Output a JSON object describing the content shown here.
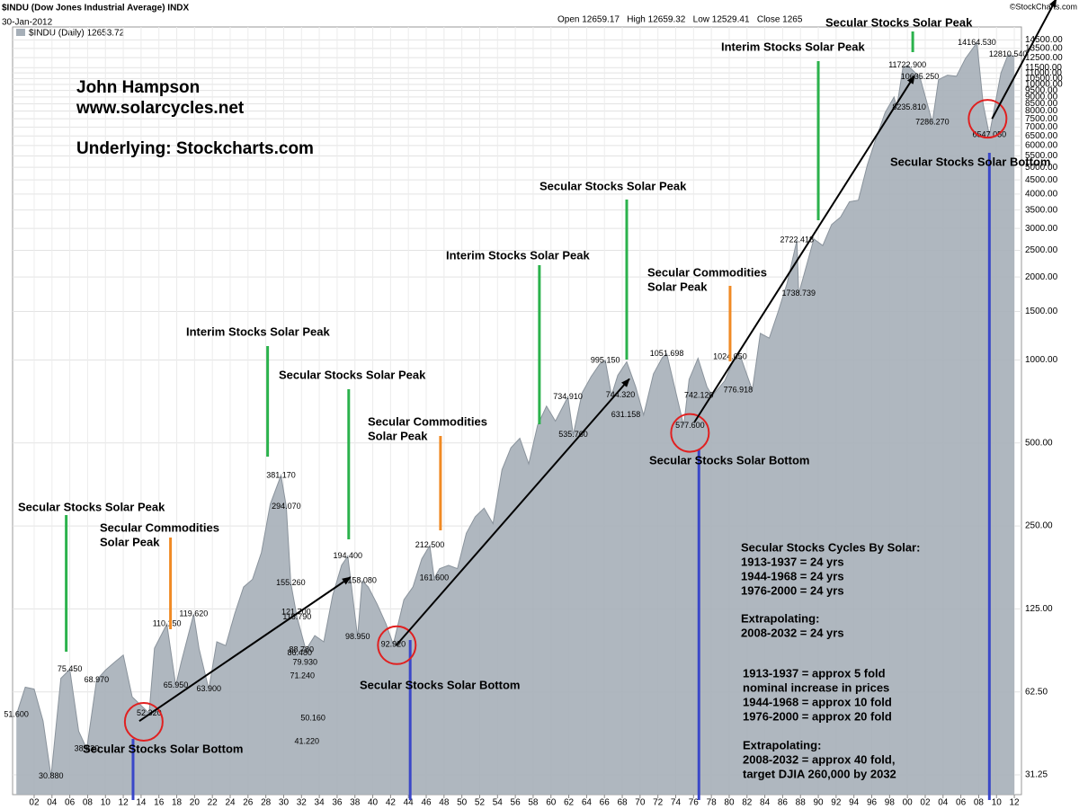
{
  "chart_data": {
    "type": "area",
    "title": "$INDU (Dow Jones Industrial Average) INDX",
    "date": "30-Jan-2012",
    "header_prices": "Open 12659.17   High 12659.32   Low 12529.41   Close 1265",
    "watermark": "©StockCharts.com",
    "author": [
      "John Hampson",
      "www.solarcycles.net"
    ],
    "source": "Underlying: Stockcharts.com",
    "log_y": true,
    "grid": true,
    "xlim": [
      1899.58,
      2012.8
    ],
    "ylim": [
      26.5,
      16150
    ],
    "xticks": [
      {
        "value": 1902,
        "label": "02"
      },
      {
        "value": 1904,
        "label": "04"
      },
      {
        "value": 1906,
        "label": "06"
      },
      {
        "value": 1908,
        "label": "08"
      },
      {
        "value": 1910,
        "label": "10"
      },
      {
        "value": 1912,
        "label": "12"
      },
      {
        "value": 1914,
        "label": "14"
      },
      {
        "value": 1916,
        "label": "16"
      },
      {
        "value": 1918,
        "label": "18"
      },
      {
        "value": 1920,
        "label": "20"
      },
      {
        "value": 1922,
        "label": "22"
      },
      {
        "value": 1924,
        "label": "24"
      },
      {
        "value": 1926,
        "label": "26"
      },
      {
        "value": 1928,
        "label": "28"
      },
      {
        "value": 1930,
        "label": "30"
      },
      {
        "value": 1932,
        "label": "32"
      },
      {
        "value": 1934,
        "label": "34"
      },
      {
        "value": 1936,
        "label": "36"
      },
      {
        "value": 1938,
        "label": "38"
      },
      {
        "value": 1940,
        "label": "40"
      },
      {
        "value": 1942,
        "label": "42"
      },
      {
        "value": 1944,
        "label": "44"
      },
      {
        "value": 1946,
        "label": "46"
      },
      {
        "value": 1948,
        "label": "48"
      },
      {
        "value": 1950,
        "label": "50"
      },
      {
        "value": 1952,
        "label": "52"
      },
      {
        "value": 1954,
        "label": "54"
      },
      {
        "value": 1956,
        "label": "56"
      },
      {
        "value": 1958,
        "label": "58"
      },
      {
        "value": 1960,
        "label": "60"
      },
      {
        "value": 1962,
        "label": "62"
      },
      {
        "value": 1964,
        "label": "64"
      },
      {
        "value": 1966,
        "label": "66"
      },
      {
        "value": 1968,
        "label": "68"
      },
      {
        "value": 1970,
        "label": "70"
      },
      {
        "value": 1972,
        "label": "72"
      },
      {
        "value": 1974,
        "label": "74"
      },
      {
        "value": 1976,
        "label": "76"
      },
      {
        "value": 1978,
        "label": "78"
      },
      {
        "value": 1980,
        "label": "80"
      },
      {
        "value": 1982,
        "label": "82"
      },
      {
        "value": 1984,
        "label": "84"
      },
      {
        "value": 1986,
        "label": "86"
      },
      {
        "value": 1988,
        "label": "88"
      },
      {
        "value": 1990,
        "label": "90"
      },
      {
        "value": 1992,
        "label": "92"
      },
      {
        "value": 1994,
        "label": "94"
      },
      {
        "value": 1996,
        "label": "96"
      },
      {
        "value": 1998,
        "label": "98"
      },
      {
        "value": 2000,
        "label": "00"
      },
      {
        "value": 2002,
        "label": "02"
      },
      {
        "value": 2004,
        "label": "04"
      },
      {
        "value": 2006,
        "label": "06"
      },
      {
        "value": 2008,
        "label": "08"
      },
      {
        "value": 2010,
        "label": "10"
      },
      {
        "value": 2012,
        "label": "12"
      }
    ],
    "yticks": [
      31.25,
      {
        "value": 62.5,
        "label": "62.50"
      },
      {
        "value": 125,
        "label": "125.00"
      },
      {
        "value": 250,
        "label": "250.00"
      },
      {
        "value": 500,
        "label": "500.00"
      },
      {
        "value": 1000,
        "label": "1000.00"
      },
      {
        "value": 1500,
        "label": "1500.00"
      },
      {
        "value": 2000,
        "label": "2000.00"
      },
      {
        "value": 2500,
        "label": "2500.00"
      },
      {
        "value": 3000,
        "label": "3000.00"
      },
      {
        "value": 3500,
        "label": "3500.00"
      },
      {
        "value": 4000,
        "label": "4000.00"
      },
      {
        "value": 4500,
        "label": "4500.00"
      },
      {
        "value": 5000,
        "label": "5000.00"
      },
      {
        "value": 5500,
        "label": "5500.00"
      },
      {
        "value": 6000,
        "label": "6000.00"
      },
      {
        "value": 6500,
        "label": "6500.00"
      },
      {
        "value": 7000,
        "label": "7000.00"
      },
      {
        "value": 7500,
        "label": "7500.00"
      },
      {
        "value": 8000,
        "label": "8000.00"
      },
      {
        "value": 8500,
        "label": "8500.00"
      },
      {
        "value": 9000,
        "label": "9000.00"
      },
      {
        "value": 9500,
        "label": "9500.00"
      },
      {
        "value": 10000,
        "label": "10000.00"
      },
      {
        "value": 10500,
        "label": "10500.00"
      },
      {
        "value": 11000,
        "label": "11000.00"
      },
      {
        "value": 11500,
        "label": "11500.00"
      },
      {
        "value": 12500,
        "label": "12500.00"
      },
      {
        "value": 13500,
        "label": "13500.00"
      },
      {
        "value": 14500,
        "label": "14500.00"
      }
    ],
    "x": [
      1900,
      1901,
      1902,
      1903,
      1903.9,
      1905,
      1906,
      1907,
      1907.9,
      1909,
      1910,
      1911,
      1912,
      1913,
      1914.9,
      1915.5,
      1916.9,
      1917.9,
      1918.5,
      1919.9,
      1920.5,
      1921.6,
      1922.5,
      1923.5,
      1924.5,
      1925.5,
      1926.5,
      1927.5,
      1928.5,
      1929.7,
      1930.3,
      1930.8,
      1931.5,
      1932.5,
      1933.5,
      1934.5,
      1935.5,
      1936.5,
      1937.2,
      1938.3,
      1938.8,
      1939.5,
      1940.5,
      1941.5,
      1942.3,
      1943.5,
      1944.5,
      1945.5,
      1946.4,
      1946.9,
      1947.5,
      1948.5,
      1949.5,
      1950.5,
      1951.5,
      1952.5,
      1953.5,
      1954.5,
      1955.5,
      1956.5,
      1957.5,
      1958.5,
      1959.5,
      1960.5,
      1961.9,
      1962.5,
      1963.5,
      1964.5,
      1965.5,
      1966.1,
      1966.8,
      1967.5,
      1968.5,
      1969.5,
      1970.4,
      1971.5,
      1972.5,
      1973,
      1974.9,
      1975.5,
      1976.5,
      1977.5,
      1978.1,
      1979.5,
      1980.5,
      1981.3,
      1982.6,
      1983.5,
      1984.5,
      1985.5,
      1986.5,
      1987.6,
      1987.8,
      1988.5,
      1989.5,
      1990.5,
      1991.5,
      1992.5,
      1993.5,
      1994.5,
      1995.5,
      1996.5,
      1997.5,
      1998.5,
      1998.8,
      1999.5,
      2000,
      2001.4,
      2002.8,
      2003.5,
      2004.5,
      2005.5,
      2006.5,
      2007.8,
      2008.5,
      2009.2,
      2010.5,
      2011.3,
      2012
    ],
    "series": [
      {
        "name": "$INDU (Daily) 12653.72",
        "color": "#a6afb8",
        "values": [
          51.6,
          65,
          64,
          49,
          30.88,
          70,
          75.45,
          45,
          38.83,
          68.97,
          75,
          80,
          85,
          60,
          52.32,
          90,
          110.15,
          65.95,
          80,
          119.62,
          90,
          63.9,
          95,
          92,
          120,
          150,
          160,
          200,
          300,
          381.17,
          294.07,
          155.26,
          116.79,
          88.78,
          100,
          95,
          140,
          180,
          194.4,
          98.95,
          158.08,
          150,
          130,
          110,
          92.92,
          135,
          150,
          190,
          212.5,
          161.6,
          175,
          180,
          175,
          235,
          270,
          290,
          255,
          400,
          480,
          520,
          420,
          580,
          680,
          600,
          734.91,
          535.76,
          760,
          870,
          970,
          995.15,
          744.32,
          880,
          985,
          800,
          631.158,
          890,
          1020,
          1051.698,
          577.6,
          850,
          1014,
          800,
          742.12,
          840,
          1000,
          1024.05,
          776.918,
          1250,
          1200,
          1500,
          1900,
          2722.418,
          1738.739,
          2100,
          2750,
          2600,
          3100,
          3300,
          3750,
          3800,
          5100,
          6400,
          7900,
          9000,
          8235.81,
          11500,
          11722.9,
          10635.25,
          7286.27,
          10400,
          10800,
          10700,
          12400,
          14164.53,
          8500,
          6547.05,
          11000,
          12810.54,
          12653.72
        ]
      }
    ],
    "point_labels": [
      {
        "x": 1900,
        "value": 51.6,
        "label": "51.600"
      },
      {
        "x": 1903.9,
        "value": 30.88,
        "label": "30.880"
      },
      {
        "x": 1906,
        "value": 75.45,
        "label": "75.450"
      },
      {
        "x": 1907.9,
        "value": 38.83,
        "label": "38.830"
      },
      {
        "x": 1909,
        "value": 68.97,
        "label": "68.970"
      },
      {
        "x": 1914.9,
        "value": 52.32,
        "label": "52.320"
      },
      {
        "x": 1916.9,
        "value": 110.15,
        "label": "110.150"
      },
      {
        "x": 1917.9,
        "value": 65.95,
        "label": "65.950"
      },
      {
        "x": 1919.9,
        "value": 119.62,
        "label": "119.620"
      },
      {
        "x": 1921.6,
        "value": 63.9,
        "label": "63.900"
      },
      {
        "x": 1929.7,
        "value": 381.17,
        "label": "381.170"
      },
      {
        "x": 1930.3,
        "value": 294.07,
        "label": "294.070"
      },
      {
        "x": 1930.8,
        "value": 155.26,
        "label": "155.260"
      },
      {
        "x": 1931.5,
        "value": 116.79,
        "label": "116.790"
      },
      {
        "x": 1931.4,
        "value": 121.7,
        "label": "121.700"
      },
      {
        "x": 1932,
        "value": 88.78,
        "label": "88.780"
      },
      {
        "x": 1932.4,
        "value": 79.93,
        "label": "79.930"
      },
      {
        "x": 1931.8,
        "value": 86.48,
        "label": "86.480"
      },
      {
        "x": 1932.1,
        "value": 71.24,
        "label": "71.240"
      },
      {
        "x": 1933.3,
        "value": 50.16,
        "label": "50.160"
      },
      {
        "x": 1932.6,
        "value": 41.22,
        "label": "41.220"
      },
      {
        "x": 1937.2,
        "value": 194.4,
        "label": "194.400"
      },
      {
        "x": 1938.8,
        "value": 158.08,
        "label": "158.080"
      },
      {
        "x": 1938.3,
        "value": 98.95,
        "label": "98.950"
      },
      {
        "x": 1942.3,
        "value": 92.92,
        "label": "92.920"
      },
      {
        "x": 1946.4,
        "value": 212.5,
        "label": "212.500"
      },
      {
        "x": 1946.9,
        "value": 161.6,
        "label": "161.600"
      },
      {
        "x": 1961.9,
        "value": 734.91,
        "label": "734.910"
      },
      {
        "x": 1962.5,
        "value": 535.76,
        "label": "535.760"
      },
      {
        "x": 1966.1,
        "value": 995.15,
        "label": "995.150"
      },
      {
        "x": 1967.8,
        "value": 744.32,
        "label": "744.320"
      },
      {
        "x": 1968.4,
        "value": 631.158,
        "label": "631.158"
      },
      {
        "x": 1973,
        "value": 1051.698,
        "label": "1051.698"
      },
      {
        "x": 1975.6,
        "value": 577.6,
        "label": "577.600"
      },
      {
        "x": 1976.6,
        "value": 742.12,
        "label": "742.120"
      },
      {
        "x": 1980.1,
        "value": 1024.05,
        "label": "1024.050"
      },
      {
        "x": 1981,
        "value": 776.918,
        "label": "776.918"
      },
      {
        "x": 1987.6,
        "value": 2722.418,
        "label": "2722.418"
      },
      {
        "x": 1987.8,
        "value": 1738.739,
        "label": "1738.739"
      },
      {
        "x": 2000,
        "value": 11722.9,
        "label": "11722.900"
      },
      {
        "x": 2001.4,
        "value": 10635.25,
        "label": "10635.250"
      },
      {
        "x": 2000.2,
        "value": 8235.81,
        "label": "8235.810"
      },
      {
        "x": 2002.8,
        "value": 7286.27,
        "label": "7286.270"
      },
      {
        "x": 2007.8,
        "value": 14164.53,
        "label": "14164.530"
      },
      {
        "x": 2009.2,
        "value": 6547.05,
        "label": "6547.050"
      },
      {
        "x": 2011.3,
        "value": 12810.54,
        "label": "12810.540"
      }
    ],
    "annotations": [
      {
        "text": [
          "Secular Stocks Solar Peak"
        ],
        "x": 1905.6,
        "color": "#2bb24c"
      },
      {
        "text": [
          "Secular Commodities",
          "Solar Peak"
        ],
        "x": 1917.3,
        "color": "#f08a24"
      },
      {
        "text": [
          "Interim Stocks Solar Peak"
        ],
        "x": 1928.2,
        "color": "#2bb24c"
      },
      {
        "text": [
          "Secular Stocks Solar Peak"
        ],
        "x": 1937.3,
        "color": "#2bb24c"
      },
      {
        "text": [
          "Secular Commodities",
          "Solar Peak"
        ],
        "x": 1947.6,
        "color": "#f08a24"
      },
      {
        "text": [
          "Interim Stocks Solar Peak"
        ],
        "x": 1958.7,
        "color": "#2bb24c"
      },
      {
        "text": [
          "Secular Stocks Solar Peak"
        ],
        "x": 1968.5,
        "color": "#2bb24c"
      },
      {
        "text": [
          "Secular Commodities",
          "Solar Peak"
        ],
        "x": 1980.1,
        "color": "#f08a24"
      },
      {
        "text": [
          "Interim Stocks Solar Peak"
        ],
        "x": 1990.0,
        "color": "#2bb24c"
      },
      {
        "text": [
          "Secular Stocks Solar Peak"
        ],
        "x": 2000.6,
        "color": "#2bb24c"
      },
      {
        "text": [
          "Secular Stocks Solar Bottom"
        ],
        "x": 1913.1,
        "color": "#3a47c8"
      },
      {
        "text": [
          "Secular Stocks Solar Bottom"
        ],
        "x": 1944.2,
        "color": "#3a47c8"
      },
      {
        "text": [
          "Secular Stocks Solar Bottom"
        ],
        "x": 1976.6,
        "color": "#3a47c8"
      },
      {
        "text": [
          "Secular Stocks Solar Bottom"
        ],
        "x": 2009.2,
        "color": "#3a47c8"
      }
    ],
    "circles": {
      "color": "#e02020",
      "points": [
        {
          "x": 1914.3,
          "value": 48.7
        },
        {
          "x": 1942.7,
          "value": 92.3
        },
        {
          "x": 1975.6,
          "value": 544
        },
        {
          "x": 2009.0,
          "value": 7500
        }
      ]
    },
    "arrows": [
      {
        "from": {
          "x": 1913.8,
          "value": 49
        },
        "to": {
          "x": 1937.5,
          "value": 163
        }
      },
      {
        "from": {
          "x": 1942.6,
          "value": 92
        },
        "to": {
          "x": 1968.8,
          "value": 854
        }
      },
      {
        "from": {
          "x": 1976.1,
          "value": 595
        },
        "to": {
          "x": 2000.8,
          "value": 10760
        }
      },
      {
        "from": {
          "x": 2009.5,
          "value": 7500
        },
        "to": {
          "x": 2016.7,
          "value": 20400
        }
      }
    ],
    "notes": [
      [
        "Secular Stocks Cycles By Solar:",
        "1913-1937 = 24 yrs",
        "1944-1968 = 24 yrs",
        "1976-2000 = 24 yrs"
      ],
      [
        "Extrapolating:",
        "2008-2032 = 24 yrs"
      ],
      [
        "1913-1937 = approx 5 fold",
        "nominal increase in prices",
        "1944-1968 = approx 10 fold",
        "1976-2000 = approx 20 fold"
      ],
      [
        "Extrapolating:",
        "2008-2032 = approx 40 fold,",
        "target DJIA 260,000 by 2032"
      ]
    ]
  }
}
